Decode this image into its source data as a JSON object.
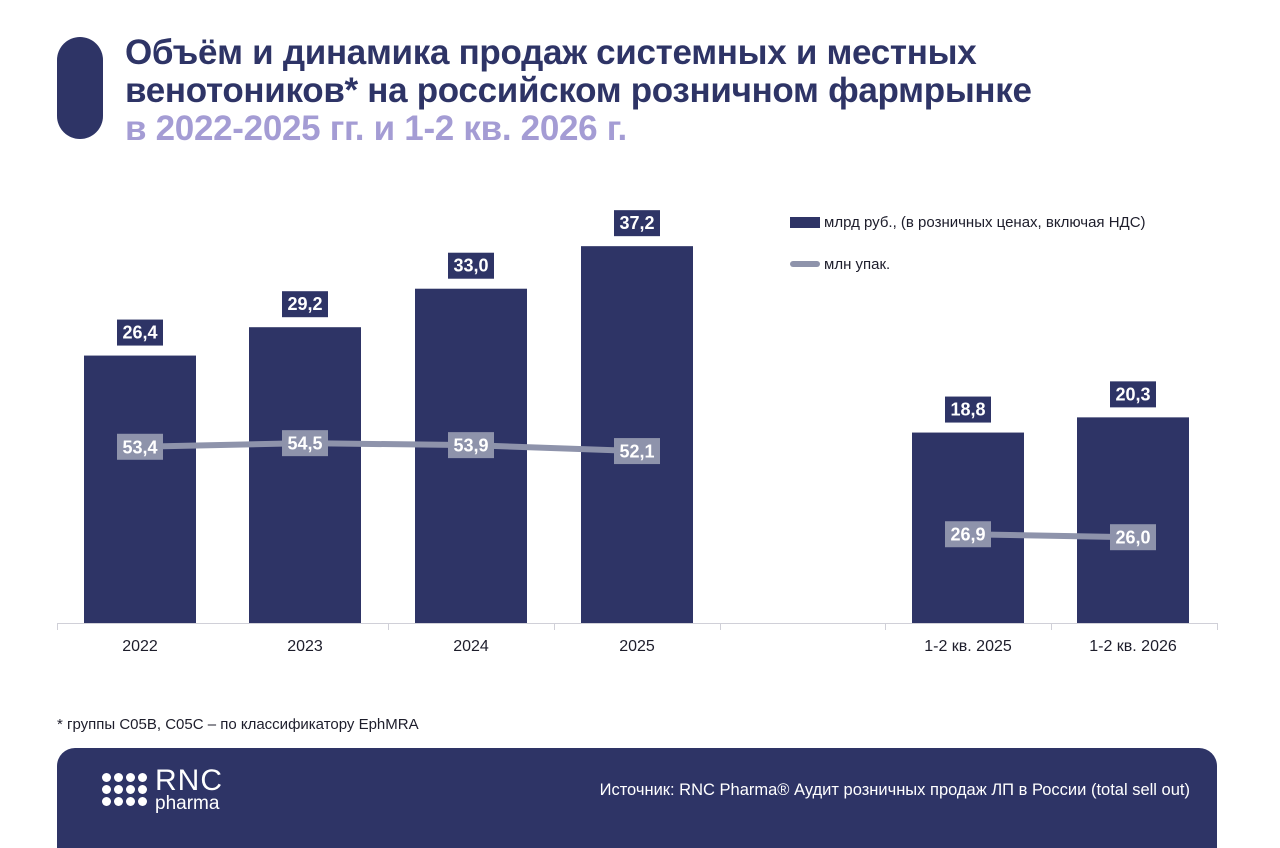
{
  "title": {
    "line1": "Объём и динамика продаж системных и местных",
    "line2": "венотоников* на российском розничном фармрынке",
    "line3": "в 2022-2025 гг. и 1-2 кв. 2026 г."
  },
  "legend": {
    "bars_label": "млрд руб., (в розничных ценах, включая НДС)",
    "line_label": "млн упак."
  },
  "chart_data": {
    "type": "bar",
    "categories": [
      "2022",
      "2023",
      "2024",
      "2025",
      "1-2 кв. 2025",
      "1-2 кв. 2026"
    ],
    "series": [
      {
        "name": "млрд руб., (в розничных ценах, включая НДС)",
        "type": "bar",
        "values": [
          26.4,
          29.2,
          33.0,
          37.2,
          18.8,
          20.3
        ],
        "labels": [
          "26,4",
          "29,2",
          "33,0",
          "37,2",
          "18,8",
          "20,3"
        ]
      },
      {
        "name": "млн упак.",
        "type": "line",
        "segments": [
          {
            "categories": [
              "2022",
              "2023",
              "2024",
              "2025"
            ],
            "values": [
              53.4,
              54.5,
              53.9,
              52.1
            ],
            "labels": [
              "53,4",
              "54,5",
              "53,9",
              "52,1"
            ]
          },
          {
            "categories": [
              "1-2 кв. 2025",
              "1-2 кв. 2026"
            ],
            "values": [
              26.9,
              26.0
            ],
            "labels": [
              "26,9",
              "26,0"
            ]
          }
        ]
      }
    ],
    "colors": {
      "bars": "#2e3466",
      "line": "#8e93ab",
      "axis": "#d0d0d8"
    },
    "legend_position": "top-right",
    "grid": false
  },
  "footnote": "* группы C05B, C05C – по классификатору EphMRA",
  "footer": {
    "logo_main": "RNC",
    "logo_sub": "pharma",
    "source": "Источник: RNC Pharma® Аудит розничных продаж ЛП в России (total sell out)"
  }
}
